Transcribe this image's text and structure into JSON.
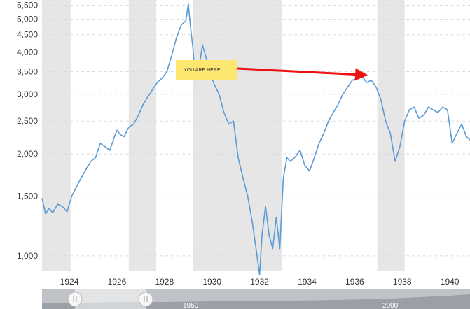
{
  "chart_data": {
    "type": "line",
    "x_unit": "year",
    "y_scale": "log",
    "ylim": [
      900,
      5700
    ],
    "xlim": [
      1922.85,
      1940.85
    ],
    "y_ticks": [
      1000,
      1500,
      2000,
      2500,
      3000,
      3500,
      4000,
      4500,
      5000,
      5500
    ],
    "y_tick_labels": [
      "1,000",
      "1,500",
      "2,000",
      "2,500",
      "3,000",
      "3,500",
      "4,000",
      "4,500",
      "5,000",
      "5,500"
    ],
    "x_ticks": [
      1924,
      1926,
      1928,
      1930,
      1932,
      1934,
      1936,
      1938,
      1940
    ],
    "x_tick_labels": [
      "1924",
      "1926",
      "1928",
      "1930",
      "1932",
      "1934",
      "1936",
      "1938",
      "1940"
    ],
    "grid": true,
    "recessions": [
      [
        1922.85,
        1924.05
      ],
      [
        1926.5,
        1927.65
      ],
      [
        1929.2,
        1932.95
      ],
      [
        1936.95,
        1938.1
      ]
    ],
    "series": [
      {
        "color": "#5b9bd5",
        "x": [
          1922.85,
          1923.0,
          1923.15,
          1923.3,
          1923.5,
          1923.7,
          1923.9,
          1924.1,
          1924.3,
          1924.5,
          1924.7,
          1924.9,
          1925.1,
          1925.3,
          1925.5,
          1925.7,
          1925.9,
          1926.0,
          1926.15,
          1926.3,
          1926.5,
          1926.7,
          1926.9,
          1927.1,
          1927.3,
          1927.5,
          1927.7,
          1927.9,
          1928.1,
          1928.3,
          1928.5,
          1928.7,
          1928.9,
          1929.0,
          1929.1,
          1929.2,
          1929.3,
          1929.45,
          1929.6,
          1929.75,
          1929.9,
          1930.1,
          1930.3,
          1930.5,
          1930.7,
          1930.9,
          1931.1,
          1931.3,
          1931.5,
          1931.7,
          1931.85,
          1932.0,
          1932.1,
          1932.25,
          1932.4,
          1932.55,
          1932.7,
          1932.85,
          1933.0,
          1933.15,
          1933.3,
          1933.5,
          1933.7,
          1933.9,
          1934.1,
          1934.3,
          1934.5,
          1934.7,
          1934.9,
          1935.1,
          1935.3,
          1935.5,
          1935.7,
          1935.9,
          1936.1,
          1936.3,
          1936.5,
          1936.7,
          1936.9,
          1937.1,
          1937.3,
          1937.5,
          1937.7,
          1937.9,
          1938.1,
          1938.3,
          1938.5,
          1938.7,
          1938.9,
          1939.1,
          1939.3,
          1939.5,
          1939.7,
          1939.9,
          1940.1,
          1940.3,
          1940.5,
          1940.7,
          1940.85
        ],
        "y": [
          1480,
          1330,
          1380,
          1340,
          1420,
          1400,
          1350,
          1500,
          1600,
          1700,
          1800,
          1900,
          1950,
          2150,
          2100,
          2050,
          2250,
          2350,
          2280,
          2250,
          2400,
          2450,
          2600,
          2800,
          2950,
          3100,
          3250,
          3350,
          3500,
          3900,
          4400,
          4800,
          4950,
          5550,
          4700,
          4100,
          3300,
          3600,
          4200,
          3850,
          3500,
          3200,
          3000,
          2650,
          2450,
          2500,
          1950,
          1700,
          1500,
          1250,
          1050,
          880,
          1150,
          1400,
          1150,
          1050,
          1300,
          1050,
          1700,
          1950,
          1900,
          1960,
          2050,
          1850,
          1780,
          1950,
          2150,
          2300,
          2500,
          2650,
          2800,
          3000,
          3150,
          3300,
          3350,
          3400,
          3250,
          3300,
          3150,
          2900,
          2500,
          2300,
          1900,
          2100,
          2500,
          2700,
          2750,
          2550,
          2600,
          2750,
          2700,
          2650,
          2750,
          2700,
          2150,
          2300,
          2450,
          2250,
          2200
        ]
      }
    ],
    "annotation": {
      "text": "YOU ARE HERE",
      "points_to": [
        1936.55,
        3420
      ]
    }
  },
  "navigator": {
    "labels": [
      "1950",
      "2000"
    ],
    "range": [
      1922.85,
      1940.85
    ]
  }
}
